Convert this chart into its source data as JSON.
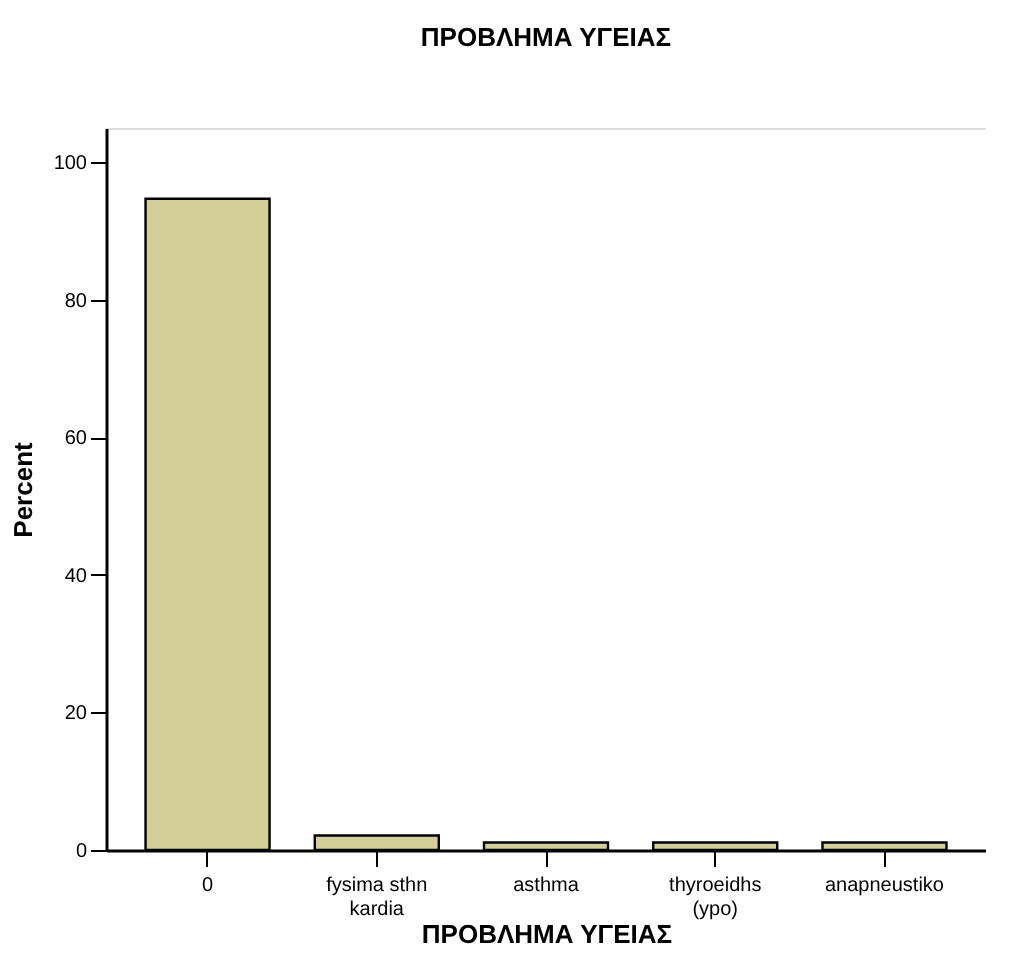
{
  "chart_data": {
    "type": "bar",
    "title": "ΠΡΟΒΛΗΜΑ ΥΓΕΙΑΣ",
    "xlabel": "ΠΡΟΒΛΗΜΑ ΥΓΕΙΑΣ",
    "ylabel": "Percent",
    "categories": [
      "0",
      "fysima sthn kardia",
      "asthma",
      "thyroeidhs (ypo)",
      "anapneustiko"
    ],
    "values": [
      94.7,
      2.1,
      1.1,
      1.1,
      1.1
    ],
    "color": "#d2cf9a",
    "ylim": [
      0,
      105
    ],
    "yticks": [
      0,
      20,
      40,
      60,
      80,
      100
    ],
    "grid": false
  }
}
